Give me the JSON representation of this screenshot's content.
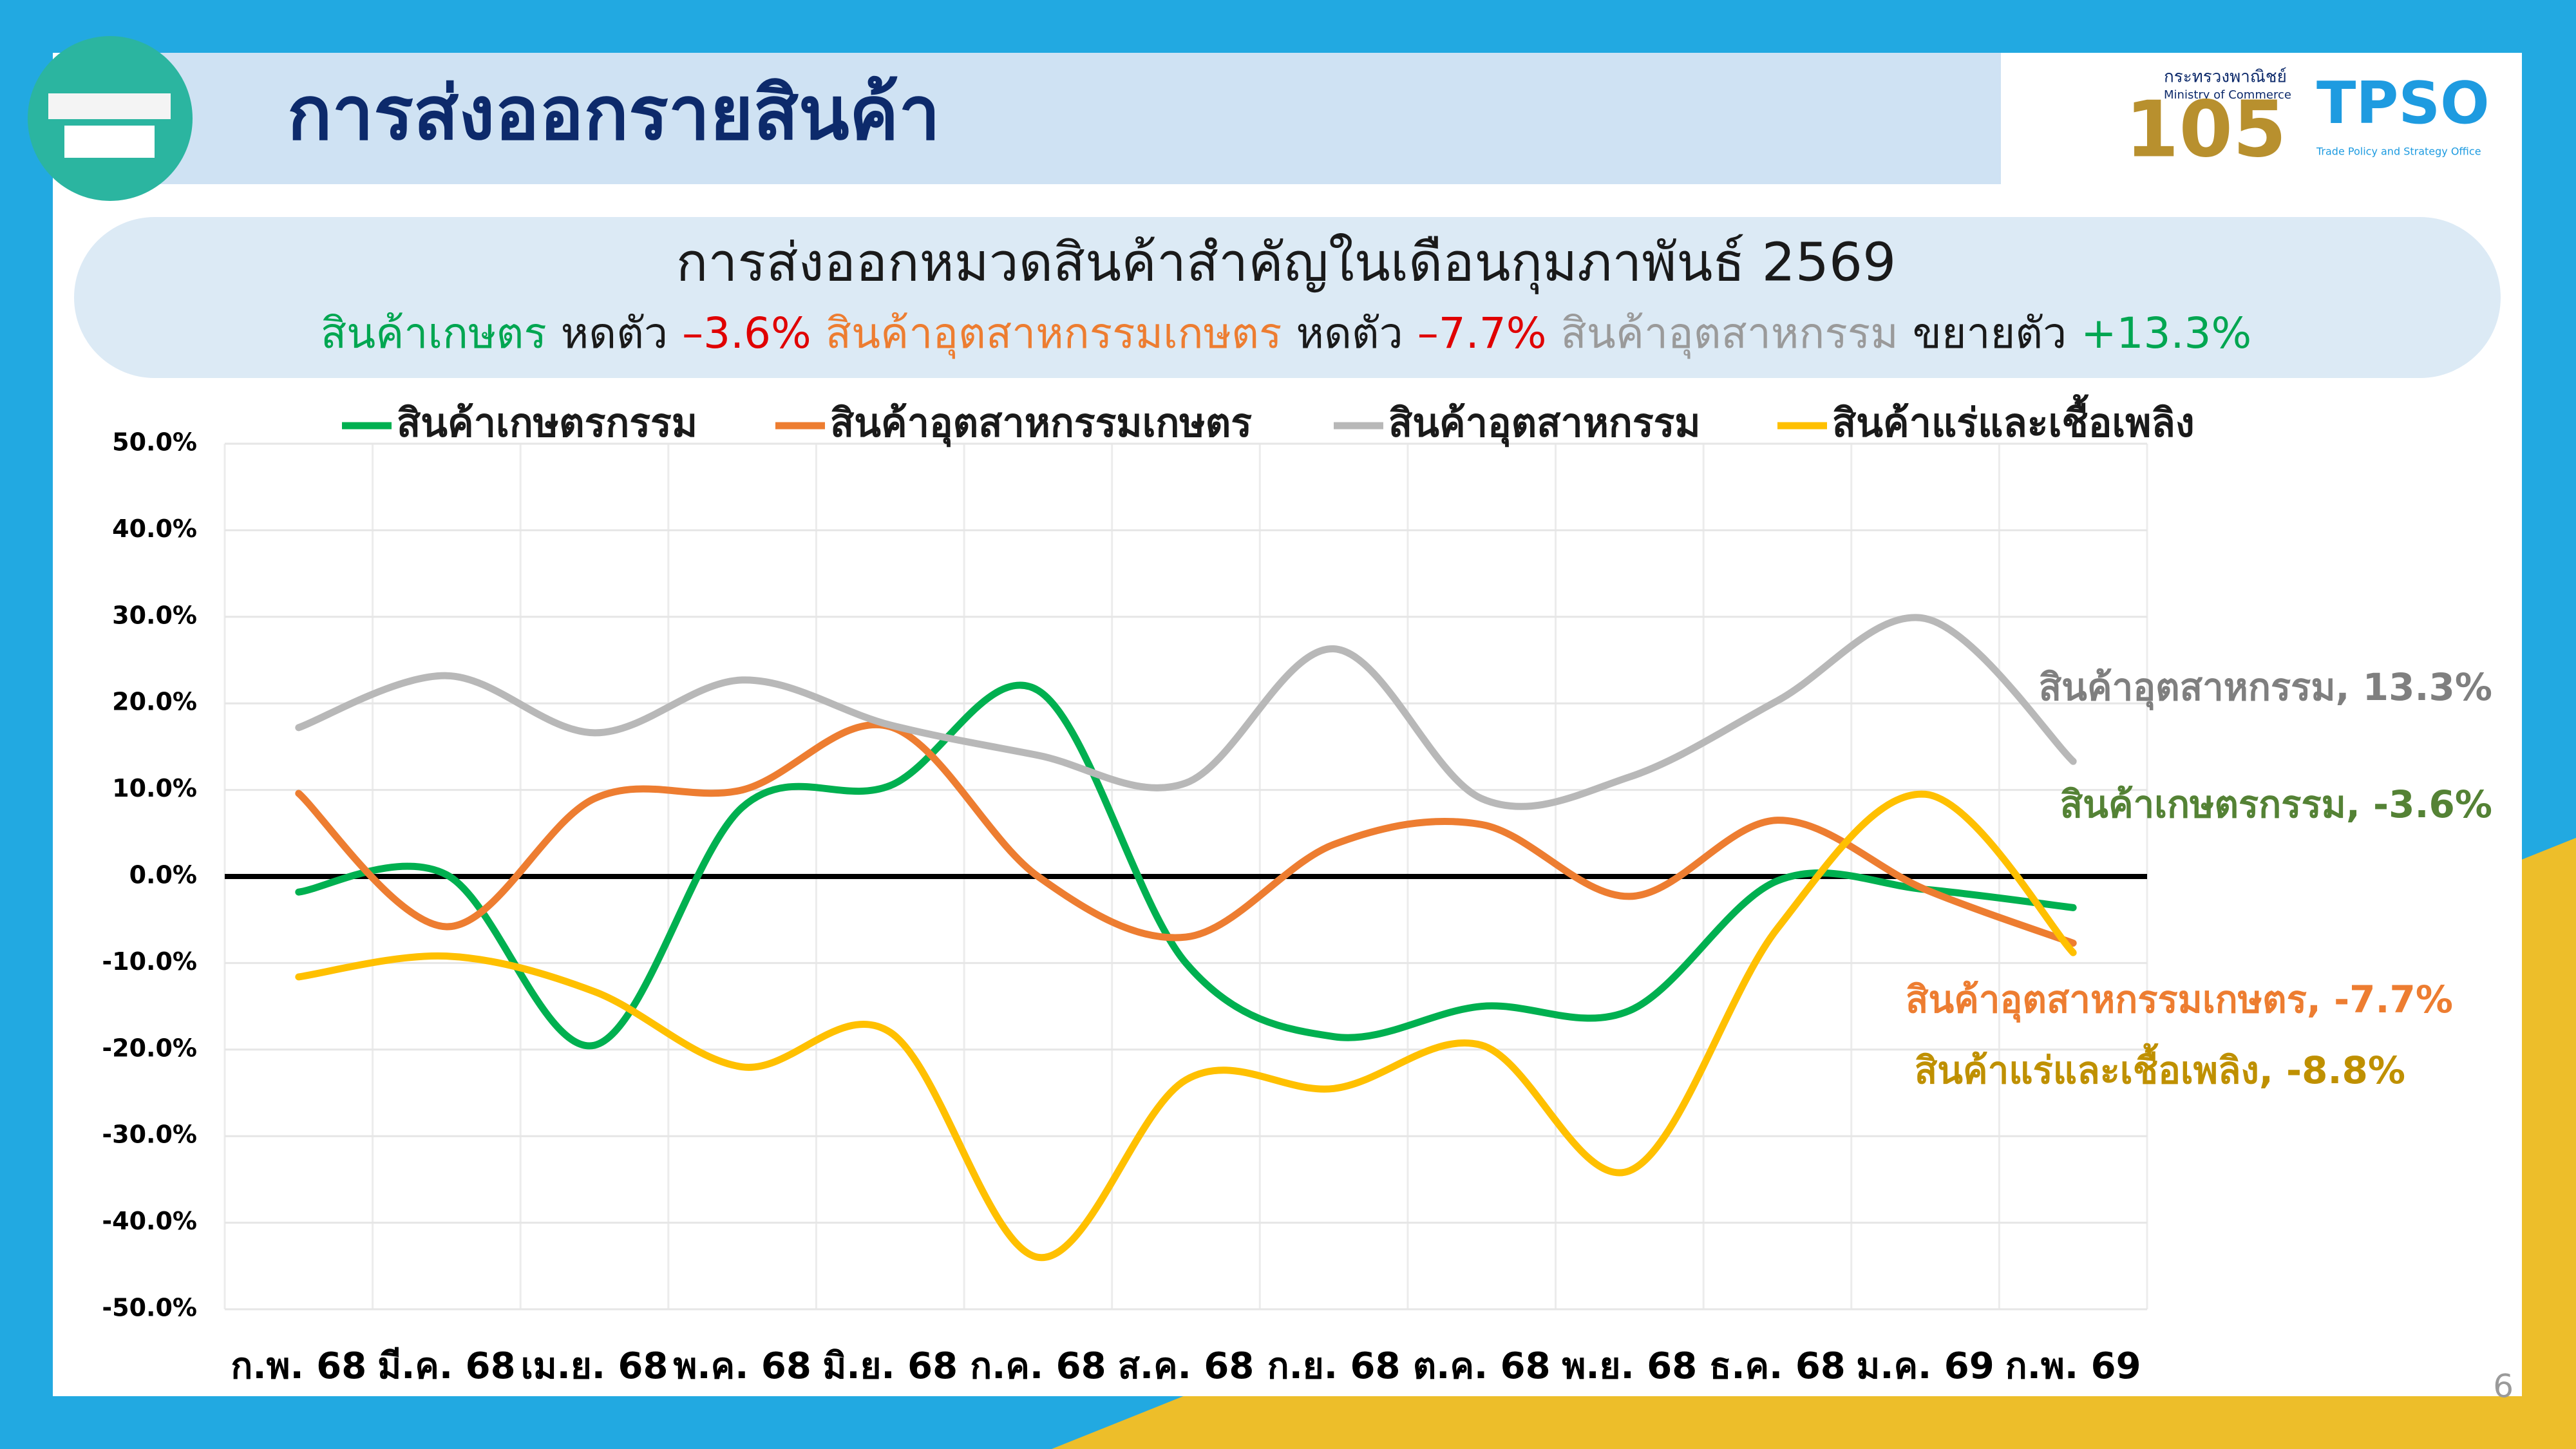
{
  "header": {
    "title": "การส่งออกรายสินค้า"
  },
  "logos": {
    "ministry": "กระทรวงพาณิชย์",
    "ministry_en": "Ministry of Commerce",
    "anniversary": "105",
    "office": "TPSO",
    "office_en": "Trade Policy and Strategy Office"
  },
  "subtitle": {
    "title": "การส่งออกหมวดสินค้าสำคัญในเดือนกุมภาพันธ์ 2569",
    "summary": [
      {
        "text": "สินค้าเกษตร",
        "color": "#00a651"
      },
      {
        "text": "หดตัว",
        "color": "#1a1a1a"
      },
      {
        "text": "–3.6%",
        "color": "#e00000"
      },
      {
        "text": "สินค้าอุตสาหกรรมเกษตร",
        "color": "#ed7d31"
      },
      {
        "text": "หดตัว",
        "color": "#1a1a1a"
      },
      {
        "text": "–7.7%",
        "color": "#e00000"
      },
      {
        "text": "สินค้าอุตสาหกรรม",
        "color": "#9a9a9a"
      },
      {
        "text": "ขยายตัว",
        "color": "#1a1a1a"
      },
      {
        "text": "+13.3%",
        "color": "#00a651"
      }
    ]
  },
  "page_number": "6",
  "chart_data": {
    "type": "line",
    "categories": [
      "ก.พ. 68",
      "มี.ค. 68",
      "เม.ย. 68",
      "พ.ค. 68",
      "มิ.ย. 68",
      "ก.ค. 68",
      "ส.ค. 68",
      "ก.ย. 68",
      "ต.ค. 68",
      "พ.ย. 68",
      "ธ.ค. 68",
      "ม.ค. 69",
      "ก.พ. 69"
    ],
    "series": [
      {
        "name": "สินค้าเกษตรกรรม",
        "color": "#00b050",
        "values": [
          -1.8,
          0.2,
          -19.5,
          8,
          10.5,
          21.5,
          -10,
          -18.5,
          -15,
          -15.5,
          -0.5,
          -1.5,
          -3.6
        ]
      },
      {
        "name": "สินค้าอุตสาหกรรมเกษตร",
        "color": "#ed7d31",
        "values": [
          9.6,
          -5.8,
          9,
          10,
          17.3,
          0,
          -7,
          3.7,
          6,
          -2.3,
          6.5,
          -1.5,
          -7.7
        ]
      },
      {
        "name": "สินค้าอุตสาหกรรม",
        "color": "#b8b8b8",
        "values": [
          17.2,
          23.2,
          16.6,
          22.7,
          17.5,
          14,
          10.8,
          26.3,
          9,
          11.5,
          20.3,
          29.8,
          13.3
        ]
      },
      {
        "name": "สินค้าแร่และเชื้อเพลิง",
        "color": "#ffc000",
        "values": [
          -11.6,
          -9.2,
          -13.3,
          -22,
          -18,
          -44,
          -23.5,
          -24.5,
          -19.5,
          -34,
          -6,
          9.5,
          -8.8
        ]
      }
    ],
    "ylim": [
      -50,
      50
    ],
    "yticks": [
      {
        "value": -50,
        "label": "-50.0%"
      },
      {
        "value": -40,
        "label": "-40.0%"
      },
      {
        "value": -30,
        "label": "-30.0%"
      },
      {
        "value": -20,
        "label": "-20.0%"
      },
      {
        "value": -10,
        "label": "-10.0%"
      },
      {
        "value": 0,
        "label": "0.0%"
      },
      {
        "value": 10,
        "label": "10.0%"
      },
      {
        "value": 20,
        "label": "20.0%"
      },
      {
        "value": 30,
        "label": "30.0%"
      },
      {
        "value": 40,
        "label": "40.0%"
      },
      {
        "value": 50,
        "label": "50.0%"
      }
    ],
    "grid": true,
    "legend": "top",
    "smooth": true,
    "annotations": [
      {
        "text": "สินค้าอุตสาหกรรม, 13.3%",
        "color": "#7f7f7f"
      },
      {
        "text": "สินค้าเกษตรกรรม, -3.6%",
        "color": "#548235"
      },
      {
        "text": "สินค้าอุตสาหกรรมเกษตร, -7.7%",
        "color": "#ed7d31"
      },
      {
        "text": "สินค้าแร่และเชื้อเพลิง, -8.8%",
        "color": "#bf9000"
      }
    ]
  }
}
